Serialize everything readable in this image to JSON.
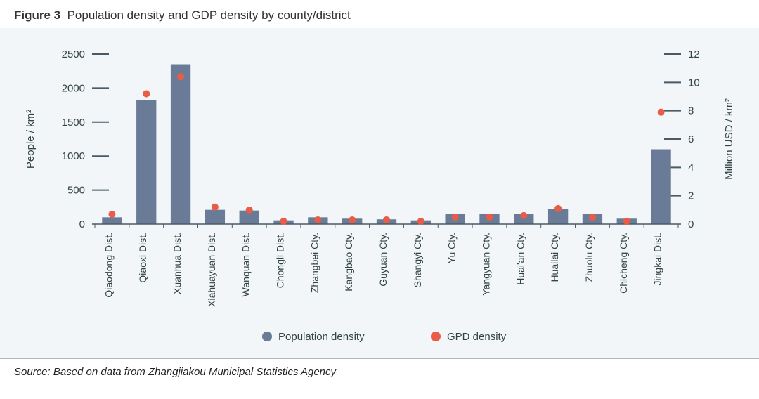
{
  "figure": {
    "label": "Figure 3",
    "title": "Population density and GDP density by county/district"
  },
  "chart": {
    "type": "bar+scatter",
    "background_color": "#f2f6f8",
    "plot_background": "#f2f6f8",
    "bar_color": "#6a7b97",
    "dot_color": "#e95c47",
    "dot_radius": 5,
    "bar_width_ratio": 0.58,
    "tick_mark_color": "#4a5a66",
    "tick_mark_width": 2,
    "categories": [
      "Qiaodong Dist.",
      "Qiaoxi Dist.",
      "Xuanhua Dist.",
      "Xiahuayuan Dist.",
      "Wanquan Dist.",
      "Chongli Dist.",
      "Zhangbei Cty.",
      "Kangbao Cty.",
      "Guyuan Cty.",
      "Shangyi Cty.",
      "Yu Cty.",
      "Yangyuan Cty.",
      "Huai'an Cty.",
      "Huailai Cty.",
      "Zhuolu Cty.",
      "Chicheng Cty.",
      "Jingkai Dist."
    ],
    "bar_values": [
      100,
      1820,
      2350,
      210,
      200,
      55,
      100,
      80,
      70,
      55,
      150,
      150,
      150,
      220,
      150,
      80,
      1100
    ],
    "dot_values": [
      0.7,
      9.2,
      10.4,
      1.2,
      1.0,
      0.2,
      0.3,
      0.3,
      0.3,
      0.2,
      0.5,
      0.5,
      0.6,
      1.1,
      0.5,
      0.2,
      7.9
    ],
    "left_axis": {
      "label": "People / km²",
      "min": 0,
      "max": 2500,
      "step": 500,
      "ticks": [
        0,
        500,
        1000,
        1500,
        2000,
        2500
      ]
    },
    "right_axis": {
      "label": "Million USD / km²",
      "min": 0,
      "max": 12,
      "step": 2,
      "ticks": [
        0,
        2,
        4,
        6,
        8,
        10,
        12
      ]
    },
    "baseline_color": "#4a5a66",
    "baseline_width": 1.5,
    "legend": {
      "bar_label": "Population density",
      "dot_label": "GPD density"
    },
    "label_fontsize": 15,
    "cat_label_fontsize": 14
  },
  "source": "Source: Based on data from Zhangjiakou Municipal Statistics Agency"
}
